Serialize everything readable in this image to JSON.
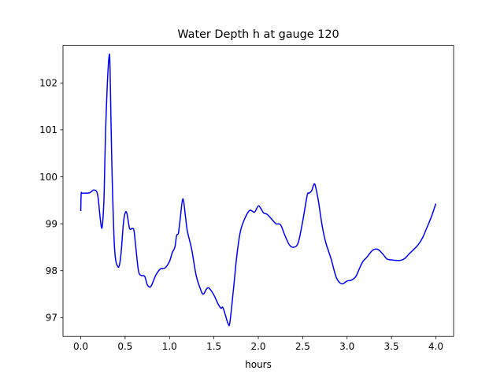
{
  "chart_data": {
    "type": "line",
    "title": "Water Depth h at gauge 120",
    "xlabel": "hours",
    "ylabel": "",
    "xlim": [
      -0.2,
      4.2
    ],
    "ylim": [
      96.6,
      102.8
    ],
    "xticks": [
      0.0,
      0.5,
      1.0,
      1.5,
      2.0,
      2.5,
      3.0,
      3.5,
      4.0
    ],
    "xtick_labels": [
      "0.0",
      "0.5",
      "1.0",
      "1.5",
      "2.0",
      "2.5",
      "3.0",
      "3.5",
      "4.0"
    ],
    "yticks": [
      97,
      98,
      99,
      100,
      101,
      102
    ],
    "ytick_labels": [
      "97",
      "98",
      "99",
      "100",
      "101",
      "102"
    ],
    "grid": false,
    "series": [
      {
        "color": "#0000ff",
        "x": [
          0.0,
          0.005,
          0.02,
          0.1,
          0.15,
          0.19,
          0.22,
          0.24,
          0.26,
          0.27,
          0.28,
          0.3,
          0.32,
          0.33,
          0.35,
          0.38,
          0.42,
          0.45,
          0.48,
          0.5,
          0.52,
          0.55,
          0.58,
          0.6,
          0.62,
          0.65,
          0.68,
          0.72,
          0.75,
          0.78,
          0.8,
          0.85,
          0.9,
          0.95,
          1.0,
          1.03,
          1.06,
          1.08,
          1.1,
          1.12,
          1.15,
          1.18,
          1.2,
          1.25,
          1.3,
          1.35,
          1.38,
          1.42,
          1.45,
          1.5,
          1.55,
          1.58,
          1.6,
          1.63,
          1.66,
          1.68,
          1.72,
          1.76,
          1.8,
          1.85,
          1.9,
          1.93,
          1.96,
          2.0,
          2.03,
          2.06,
          2.1,
          2.15,
          2.2,
          2.25,
          2.3,
          2.35,
          2.4,
          2.45,
          2.5,
          2.55,
          2.57,
          2.6,
          2.63,
          2.65,
          2.68,
          2.72,
          2.76,
          2.82,
          2.88,
          2.94,
          3.0,
          3.05,
          3.1,
          3.14,
          3.18,
          3.22,
          3.26,
          3.3,
          3.35,
          3.4,
          3.45,
          3.5,
          3.55,
          3.6,
          3.65,
          3.7,
          3.75,
          3.8,
          3.85,
          3.9,
          3.95,
          4.0
        ],
        "y": [
          99.27,
          99.64,
          99.65,
          99.66,
          99.72,
          99.62,
          99.1,
          98.92,
          99.45,
          100.2,
          101.0,
          102.0,
          102.58,
          102.3,
          100.3,
          98.5,
          98.08,
          98.3,
          99.0,
          99.23,
          99.22,
          98.9,
          98.9,
          98.85,
          98.5,
          98.0,
          97.9,
          97.88,
          97.7,
          97.65,
          97.7,
          97.92,
          98.04,
          98.06,
          98.2,
          98.38,
          98.5,
          98.75,
          98.8,
          99.1,
          99.53,
          99.15,
          98.85,
          98.45,
          97.9,
          97.6,
          97.5,
          97.62,
          97.62,
          97.48,
          97.28,
          97.2,
          97.22,
          97.05,
          96.87,
          96.9,
          97.6,
          98.35,
          98.85,
          99.12,
          99.28,
          99.27,
          99.25,
          99.38,
          99.32,
          99.23,
          99.2,
          99.1,
          99.0,
          98.98,
          98.75,
          98.55,
          98.5,
          98.6,
          99.05,
          99.6,
          99.65,
          99.7,
          99.85,
          99.75,
          99.45,
          98.95,
          98.6,
          98.25,
          97.85,
          97.72,
          97.78,
          97.8,
          97.88,
          98.05,
          98.2,
          98.28,
          98.38,
          98.45,
          98.45,
          98.36,
          98.25,
          98.23,
          98.22,
          98.22,
          98.26,
          98.36,
          98.45,
          98.55,
          98.7,
          98.92,
          99.15,
          99.43
        ]
      }
    ]
  }
}
